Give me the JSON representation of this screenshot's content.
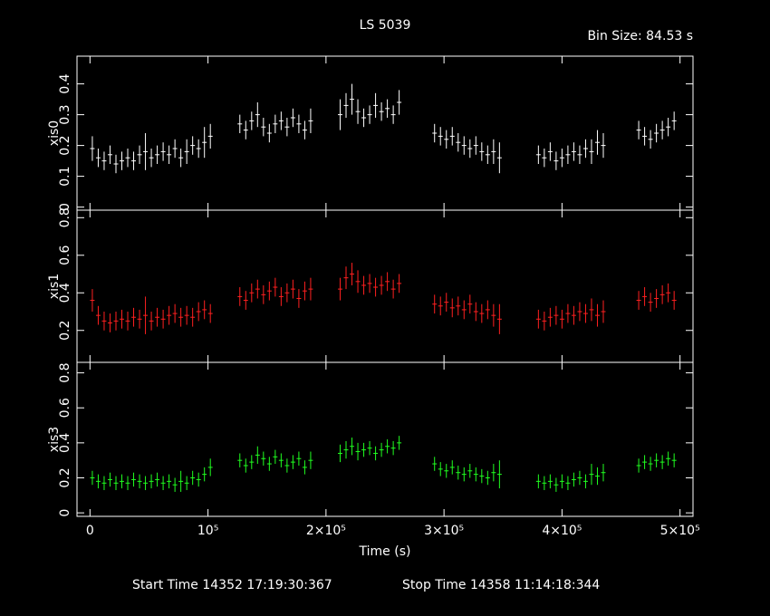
{
  "chart_data": [
    {
      "type": "errorbar",
      "title": "LS 5039",
      "annotation": "Bin Size: 84.53 s",
      "start_time": "Start Time 14352 17:19:30:367",
      "stop_time": "Stop Time 14358 11:14:18:344",
      "ylabel": "xis0",
      "color": "#ffffff",
      "xlim": [
        -11000,
        511000
      ],
      "ylim": [
        -0.01,
        0.49
      ],
      "yticks": [
        0,
        0.1,
        0.2,
        0.3,
        0.4
      ],
      "x": [
        2000,
        7000,
        12000,
        17000,
        22000,
        27000,
        32000,
        37000,
        42000,
        47000,
        52000,
        57000,
        62000,
        67000,
        72000,
        77000,
        82000,
        87000,
        92000,
        97000,
        102000,
        127000,
        132000,
        137000,
        142000,
        147000,
        152000,
        157000,
        162000,
        167000,
        172000,
        177000,
        182000,
        187000,
        212000,
        217000,
        222000,
        227000,
        232000,
        237000,
        242000,
        247000,
        252000,
        257000,
        262000,
        292000,
        297000,
        302000,
        307000,
        312000,
        317000,
        322000,
        327000,
        332000,
        337000,
        342000,
        347000,
        380000,
        385000,
        390000,
        395000,
        400000,
        405000,
        410000,
        415000,
        420000,
        425000,
        430000,
        435000,
        465000,
        470000,
        475000,
        480000,
        485000,
        490000,
        495000
      ],
      "values": [
        0.19,
        0.16,
        0.15,
        0.17,
        0.14,
        0.15,
        0.16,
        0.15,
        0.17,
        0.18,
        0.16,
        0.17,
        0.18,
        0.17,
        0.19,
        0.16,
        0.18,
        0.2,
        0.19,
        0.21,
        0.23,
        0.27,
        0.25,
        0.28,
        0.3,
        0.26,
        0.24,
        0.27,
        0.28,
        0.26,
        0.29,
        0.27,
        0.25,
        0.28,
        0.3,
        0.33,
        0.35,
        0.31,
        0.29,
        0.3,
        0.33,
        0.31,
        0.32,
        0.3,
        0.34,
        0.24,
        0.23,
        0.22,
        0.23,
        0.21,
        0.2,
        0.19,
        0.2,
        0.18,
        0.17,
        0.18,
        0.16,
        0.17,
        0.16,
        0.18,
        0.15,
        0.16,
        0.17,
        0.18,
        0.17,
        0.19,
        0.18,
        0.21,
        0.2,
        0.25,
        0.23,
        0.22,
        0.24,
        0.25,
        0.26,
        0.28
      ],
      "errors": [
        0.04,
        0.03,
        0.03,
        0.03,
        0.03,
        0.03,
        0.03,
        0.03,
        0.03,
        0.06,
        0.03,
        0.03,
        0.03,
        0.03,
        0.03,
        0.03,
        0.04,
        0.03,
        0.03,
        0.05,
        0.04,
        0.03,
        0.03,
        0.03,
        0.04,
        0.03,
        0.03,
        0.03,
        0.03,
        0.03,
        0.03,
        0.03,
        0.03,
        0.04,
        0.05,
        0.04,
        0.05,
        0.04,
        0.03,
        0.03,
        0.04,
        0.03,
        0.03,
        0.03,
        0.04,
        0.03,
        0.03,
        0.03,
        0.03,
        0.03,
        0.03,
        0.03,
        0.03,
        0.03,
        0.03,
        0.04,
        0.05,
        0.03,
        0.03,
        0.03,
        0.03,
        0.03,
        0.03,
        0.03,
        0.03,
        0.03,
        0.04,
        0.04,
        0.04,
        0.03,
        0.03,
        0.03,
        0.03,
        0.03,
        0.03,
        0.03
      ]
    },
    {
      "type": "errorbar",
      "ylabel": "xis1",
      "color": "#ff2020",
      "xlim": [
        -11000,
        511000
      ],
      "ylim": [
        0.03,
        0.84
      ],
      "yticks": [
        0.2,
        0.4,
        0.6,
        0.8
      ],
      "x": [
        2000,
        7000,
        12000,
        17000,
        22000,
        27000,
        32000,
        37000,
        42000,
        47000,
        52000,
        57000,
        62000,
        67000,
        72000,
        77000,
        82000,
        87000,
        92000,
        97000,
        102000,
        127000,
        132000,
        137000,
        142000,
        147000,
        152000,
        157000,
        162000,
        167000,
        172000,
        177000,
        182000,
        187000,
        212000,
        217000,
        222000,
        227000,
        232000,
        237000,
        242000,
        247000,
        252000,
        257000,
        262000,
        292000,
        297000,
        302000,
        307000,
        312000,
        317000,
        322000,
        327000,
        332000,
        337000,
        342000,
        347000,
        380000,
        385000,
        390000,
        395000,
        400000,
        405000,
        410000,
        415000,
        420000,
        425000,
        430000,
        435000,
        465000,
        470000,
        475000,
        480000,
        485000,
        490000,
        495000
      ],
      "values": [
        0.36,
        0.28,
        0.25,
        0.24,
        0.25,
        0.26,
        0.25,
        0.27,
        0.26,
        0.28,
        0.25,
        0.27,
        0.26,
        0.28,
        0.29,
        0.27,
        0.28,
        0.27,
        0.3,
        0.31,
        0.29,
        0.38,
        0.36,
        0.4,
        0.42,
        0.39,
        0.41,
        0.43,
        0.38,
        0.4,
        0.42,
        0.37,
        0.41,
        0.42,
        0.42,
        0.48,
        0.5,
        0.46,
        0.44,
        0.45,
        0.43,
        0.44,
        0.46,
        0.42,
        0.45,
        0.34,
        0.33,
        0.35,
        0.32,
        0.33,
        0.31,
        0.34,
        0.3,
        0.29,
        0.31,
        0.28,
        0.26,
        0.26,
        0.25,
        0.27,
        0.28,
        0.26,
        0.29,
        0.28,
        0.3,
        0.29,
        0.31,
        0.28,
        0.3,
        0.36,
        0.38,
        0.35,
        0.37,
        0.39,
        0.4,
        0.36
      ],
      "errors": [
        0.06,
        0.05,
        0.05,
        0.05,
        0.05,
        0.05,
        0.05,
        0.05,
        0.05,
        0.1,
        0.05,
        0.05,
        0.05,
        0.05,
        0.05,
        0.05,
        0.05,
        0.05,
        0.05,
        0.05,
        0.05,
        0.05,
        0.05,
        0.05,
        0.05,
        0.05,
        0.05,
        0.05,
        0.05,
        0.05,
        0.05,
        0.05,
        0.05,
        0.06,
        0.06,
        0.06,
        0.06,
        0.06,
        0.05,
        0.05,
        0.05,
        0.05,
        0.05,
        0.05,
        0.05,
        0.05,
        0.05,
        0.05,
        0.05,
        0.05,
        0.05,
        0.05,
        0.05,
        0.05,
        0.05,
        0.06,
        0.08,
        0.05,
        0.05,
        0.05,
        0.05,
        0.05,
        0.05,
        0.05,
        0.05,
        0.05,
        0.06,
        0.06,
        0.06,
        0.05,
        0.05,
        0.05,
        0.05,
        0.05,
        0.05,
        0.05
      ]
    },
    {
      "type": "errorbar",
      "ylabel": "xis3",
      "xlabel": "Time (s)",
      "color": "#20ff20",
      "xlim": [
        -11000,
        511000
      ],
      "ylim": [
        -0.02,
        0.86
      ],
      "yticks": [
        0,
        0.2,
        0.4,
        0.6,
        0.8
      ],
      "xticks": [
        0,
        {
          "value": 100000,
          "label": "10⁵"
        },
        {
          "value": 200000,
          "label": "2×10⁵"
        },
        {
          "value": 300000,
          "label": "3×10⁵"
        },
        {
          "value": 400000,
          "label": "4×10⁵"
        },
        {
          "value": 500000,
          "label": "5×10⁵"
        }
      ],
      "x": [
        2000,
        7000,
        12000,
        17000,
        22000,
        27000,
        32000,
        37000,
        42000,
        47000,
        52000,
        57000,
        62000,
        67000,
        72000,
        77000,
        82000,
        87000,
        92000,
        97000,
        102000,
        127000,
        132000,
        137000,
        142000,
        147000,
        152000,
        157000,
        162000,
        167000,
        172000,
        177000,
        182000,
        187000,
        212000,
        217000,
        222000,
        227000,
        232000,
        237000,
        242000,
        247000,
        252000,
        257000,
        262000,
        292000,
        297000,
        302000,
        307000,
        312000,
        317000,
        322000,
        327000,
        332000,
        337000,
        342000,
        347000,
        380000,
        385000,
        390000,
        395000,
        400000,
        405000,
        410000,
        415000,
        420000,
        425000,
        430000,
        435000,
        465000,
        470000,
        475000,
        480000,
        485000,
        490000,
        495000
      ],
      "values": [
        0.2,
        0.18,
        0.17,
        0.19,
        0.17,
        0.18,
        0.17,
        0.19,
        0.18,
        0.17,
        0.18,
        0.19,
        0.17,
        0.18,
        0.16,
        0.18,
        0.17,
        0.2,
        0.19,
        0.22,
        0.26,
        0.3,
        0.27,
        0.29,
        0.33,
        0.31,
        0.28,
        0.32,
        0.3,
        0.27,
        0.29,
        0.31,
        0.26,
        0.3,
        0.34,
        0.36,
        0.38,
        0.35,
        0.36,
        0.37,
        0.34,
        0.36,
        0.38,
        0.37,
        0.4,
        0.28,
        0.25,
        0.24,
        0.26,
        0.23,
        0.22,
        0.24,
        0.22,
        0.21,
        0.2,
        0.23,
        0.22,
        0.18,
        0.17,
        0.18,
        0.16,
        0.18,
        0.17,
        0.19,
        0.2,
        0.18,
        0.22,
        0.21,
        0.23,
        0.27,
        0.29,
        0.28,
        0.3,
        0.29,
        0.31,
        0.3
      ],
      "errors": [
        0.04,
        0.04,
        0.04,
        0.04,
        0.04,
        0.04,
        0.04,
        0.04,
        0.04,
        0.04,
        0.04,
        0.04,
        0.04,
        0.04,
        0.04,
        0.06,
        0.04,
        0.04,
        0.04,
        0.04,
        0.05,
        0.04,
        0.04,
        0.04,
        0.05,
        0.04,
        0.04,
        0.04,
        0.04,
        0.04,
        0.04,
        0.04,
        0.04,
        0.05,
        0.05,
        0.05,
        0.05,
        0.05,
        0.04,
        0.04,
        0.04,
        0.04,
        0.04,
        0.04,
        0.04,
        0.04,
        0.04,
        0.04,
        0.04,
        0.04,
        0.04,
        0.04,
        0.04,
        0.04,
        0.04,
        0.05,
        0.08,
        0.04,
        0.04,
        0.04,
        0.04,
        0.04,
        0.04,
        0.04,
        0.04,
        0.04,
        0.06,
        0.05,
        0.05,
        0.04,
        0.04,
        0.04,
        0.04,
        0.04,
        0.04,
        0.04
      ]
    }
  ]
}
